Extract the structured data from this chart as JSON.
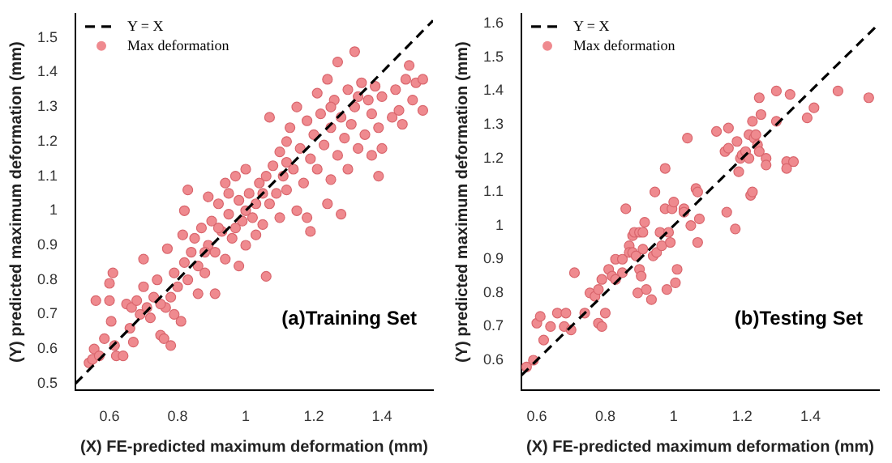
{
  "chart_data": [
    {
      "type": "scatter",
      "xlabel": "(X) FE-predicted maximum deformation (mm)",
      "ylabel": "(Y) predicted maximum deformation (mm)",
      "xlim": [
        0.5,
        1.55
      ],
      "ylim": [
        0.48,
        1.57
      ],
      "xticks": [
        0.6,
        0.8,
        1,
        1.2,
        1.4
      ],
      "yticks": [
        0.5,
        0.6,
        0.7,
        0.8,
        0.9,
        1,
        1.1,
        1.2,
        1.3,
        1.4,
        1.5
      ],
      "grid": false,
      "legend": "top left",
      "annotations": [
        "(a)Training Set"
      ],
      "series": [
        {
          "name": "Y = X",
          "type": "line",
          "color": "#000000",
          "line_style": "dashed",
          "marker": "none",
          "x": [
            0.5,
            1.55
          ],
          "values": [
            0.5,
            1.55
          ]
        },
        {
          "name": "Max deformation",
          "color": "#ef8a8f",
          "marker": "circle",
          "x": [
            0.54,
            0.55,
            0.555,
            0.56,
            0.57,
            0.585,
            0.6,
            0.6,
            0.605,
            0.61,
            0.615,
            0.62,
            0.64,
            0.65,
            0.66,
            0.665,
            0.67,
            0.68,
            0.69,
            0.7,
            0.7,
            0.71,
            0.72,
            0.73,
            0.74,
            0.75,
            0.76,
            0.765,
            0.77,
            0.78,
            0.78,
            0.79,
            0.79,
            0.8,
            0.81,
            0.815,
            0.82,
            0.82,
            0.83,
            0.83,
            0.84,
            0.85,
            0.86,
            0.86,
            0.87,
            0.88,
            0.89,
            0.89,
            0.9,
            0.91,
            0.91,
            0.92,
            0.93,
            0.94,
            0.94,
            0.95,
            0.96,
            0.97,
            0.97,
            0.98,
            0.98,
            0.99,
            1,
            1,
            1.01,
            1.02,
            1.03,
            1.03,
            1.04,
            1.05,
            1.06,
            1.06,
            1.07,
            1.07,
            1.08,
            1.09,
            1.1,
            1.1,
            1.11,
            1.12,
            1.12,
            1.13,
            1.14,
            1.15,
            1.15,
            1.16,
            1.17,
            1.18,
            1.18,
            1.19,
            1.19,
            1.2,
            1.21,
            1.21,
            1.22,
            1.23,
            1.24,
            1.24,
            1.25,
            1.25,
            1.26,
            1.27,
            1.27,
            1.28,
            1.28,
            1.29,
            1.3,
            1.3,
            1.31,
            1.32,
            1.32,
            1.33,
            1.34,
            1.35,
            1.36,
            1.37,
            1.37,
            1.38,
            1.39,
            1.39,
            1.4,
            1.4,
            1.43,
            1.44,
            1.45,
            1.46,
            1.47,
            1.48,
            1.49,
            1.5,
            1.52,
            1.52,
            0.95,
            1.05,
            1.12,
            0.88,
            0.75,
            1.25,
            1.33,
            1,
            0.92
          ],
          "values": [
            0.56,
            0.57,
            0.6,
            0.74,
            0.58,
            0.63,
            0.74,
            0.79,
            0.68,
            0.82,
            0.61,
            0.58,
            0.58,
            0.73,
            0.66,
            0.72,
            0.62,
            0.74,
            0.7,
            0.86,
            0.78,
            0.72,
            0.69,
            0.75,
            0.8,
            0.64,
            0.63,
            0.72,
            0.89,
            0.61,
            0.75,
            0.7,
            0.82,
            0.78,
            0.68,
            0.93,
            1,
            0.85,
            1.06,
            0.8,
            0.88,
            0.92,
            0.76,
            0.84,
            0.95,
            0.82,
            1.04,
            0.9,
            0.97,
            0.76,
            0.88,
            1.02,
            0.94,
            1.08,
            0.86,
            0.99,
            0.92,
            1.1,
            0.95,
            0.84,
            1.03,
            0.97,
            1.12,
            0.9,
            1.05,
            0.98,
            1.02,
            0.93,
            1.08,
            0.96,
            0.81,
            1.1,
            1.27,
            1.02,
            1.13,
            1.05,
            1.17,
            0.98,
            1.1,
            1.2,
            1.06,
            1.24,
            1.12,
            1.3,
            1,
            1.18,
            1.08,
            1.26,
            0.98,
            0.94,
            1.15,
            1.22,
            1.34,
            1.12,
            1.28,
            1.19,
            1.38,
            1.02,
            1.24,
            1.09,
            1.32,
            1.43,
            1.16,
            0.99,
            1.27,
            1.21,
            1.35,
            1.12,
            1.25,
            1.46,
            1.3,
            1.18,
            1.37,
            1.22,
            1.32,
            1.28,
            1.16,
            1.36,
            1.1,
            1.24,
            1.18,
            1.33,
            1.27,
            1.35,
            1.29,
            1.25,
            1.38,
            1.42,
            1.32,
            1.37,
            1.38,
            1.29,
            1.05,
            1.05,
            1.14,
            0.88,
            0.73,
            1.3,
            1.33,
            1,
            0.95
          ]
        }
      ]
    },
    {
      "type": "scatter",
      "xlabel": "(X) FE-predicted maximum deformation (mm)",
      "ylabel": "(Y) predicted maximum deformation (mm)",
      "xlim": [
        0.555,
        1.6
      ],
      "ylim": [
        0.51,
        1.63
      ],
      "xticks": [
        0.6,
        0.8,
        1,
        1.2,
        1.4
      ],
      "yticks": [
        0.6,
        0.7,
        0.8,
        0.9,
        1,
        1.1,
        1.2,
        1.3,
        1.4,
        1.5,
        1.6
      ],
      "grid": false,
      "legend": "top left",
      "annotations": [
        "(b)Testing Set"
      ],
      "series": [
        {
          "name": "Y = X",
          "type": "line",
          "color": "#000000",
          "line_style": "dashed",
          "marker": "none",
          "x": [
            0.555,
            1.6
          ],
          "values": [
            0.555,
            1.6
          ]
        },
        {
          "name": "Max deformation",
          "color": "#ef8a8f",
          "marker": "circle",
          "x": [
            0.57,
            0.59,
            0.6,
            0.61,
            0.62,
            0.64,
            0.66,
            0.68,
            0.685,
            0.7,
            0.71,
            0.74,
            0.755,
            0.77,
            0.78,
            0.78,
            0.79,
            0.79,
            0.8,
            0.81,
            0.82,
            0.83,
            0.83,
            0.85,
            0.85,
            0.86,
            0.87,
            0.87,
            0.88,
            0.88,
            0.885,
            0.89,
            0.895,
            0.9,
            0.9,
            0.905,
            0.91,
            0.91,
            0.915,
            0.92,
            0.935,
            0.94,
            0.945,
            0.95,
            0.96,
            0.965,
            0.975,
            0.975,
            0.98,
            0.985,
            0.99,
            0.995,
            1,
            1.005,
            1.01,
            1.03,
            1.03,
            1.04,
            1.05,
            1.065,
            1.07,
            1.07,
            1.075,
            1.125,
            1.15,
            1.155,
            1.16,
            1.16,
            1.18,
            1.185,
            1.19,
            1.195,
            1.2,
            1.21,
            1.22,
            1.22,
            1.225,
            1.23,
            1.23,
            1.235,
            1.24,
            1.245,
            1.25,
            1.25,
            1.255,
            1.27,
            1.27,
            1.3,
            1.3,
            1.33,
            1.33,
            1.34,
            1.35,
            1.39,
            1.41,
            1.48,
            1.57
          ],
          "values": [
            0.58,
            0.6,
            0.71,
            0.73,
            0.66,
            0.7,
            0.74,
            0.7,
            0.74,
            0.69,
            0.86,
            0.74,
            0.8,
            0.79,
            0.81,
            0.71,
            0.7,
            0.84,
            0.74,
            0.87,
            0.85,
            0.84,
            0.9,
            0.9,
            0.86,
            1.05,
            0.94,
            0.92,
            0.97,
            0.92,
            0.98,
            0.91,
            0.8,
            0.98,
            0.87,
            0.85,
            0.98,
            0.93,
            1.01,
            0.81,
            0.78,
            0.91,
            1.1,
            0.92,
            0.98,
            0.94,
            1.17,
            1.05,
            0.81,
            0.98,
            0.95,
            1.05,
            1.07,
            0.83,
            0.87,
            1.05,
            1.04,
            1.26,
            1,
            1.11,
            1.1,
            0.95,
            1.02,
            1.28,
            1.22,
            1.04,
            1.29,
            1.23,
            0.99,
            1.25,
            1.16,
            1.2,
            1.21,
            1.22,
            1.2,
            1.27,
            1.09,
            1.31,
            1.1,
            1.26,
            1.27,
            1.24,
            1.38,
            1.22,
            1.33,
            1.2,
            1.18,
            1.31,
            1.4,
            1.19,
            1.17,
            1.39,
            1.19,
            1.32,
            1.35,
            1.4,
            1.38
          ]
        }
      ]
    }
  ]
}
